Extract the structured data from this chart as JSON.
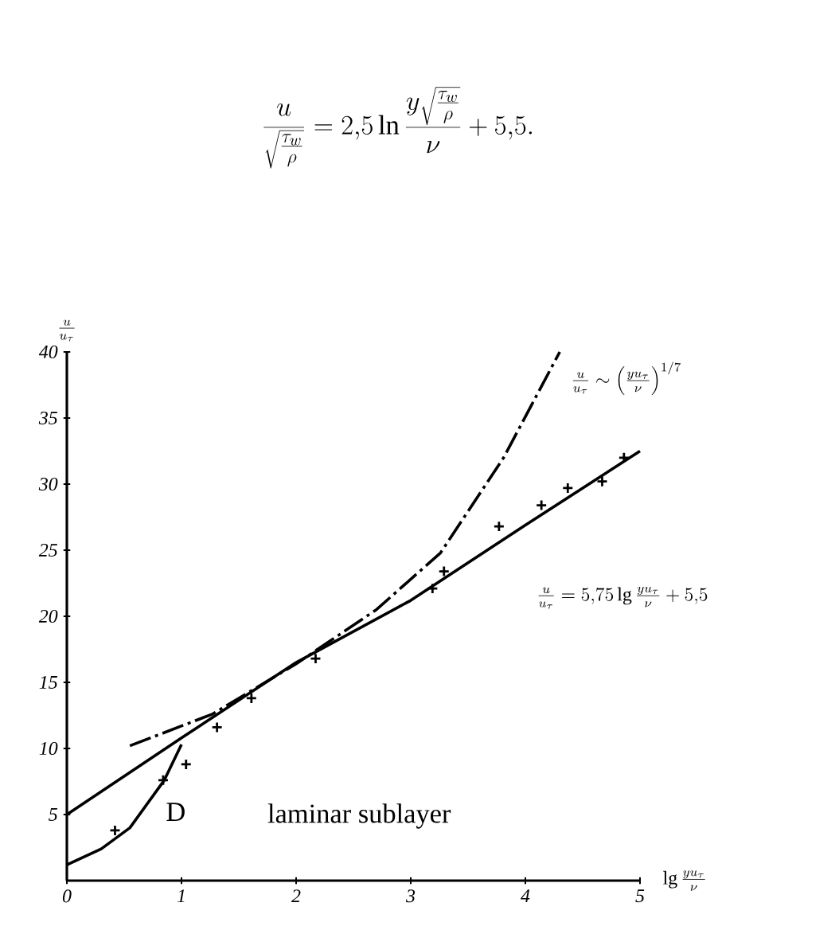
{
  "chart_data": {
    "type": "line",
    "title": "\\frac{u}{\\sqrt{\\frac{\\tau_w}{\\rho}}}=2{,}5\\ln\\frac{y\\sqrt{\\frac{\\tau_w}{\\rho}}}{\\nu}+5{,}5.",
    "xlabel": "\\lg\\frac{yu_\\tau}{\\nu}",
    "ylabel": "\\frac{u}{u_\\tau}",
    "xlim": [
      0,
      5
    ],
    "ylim": [
      0,
      40
    ],
    "xticks": [
      0,
      1,
      2,
      3,
      4,
      5
    ],
    "yticks": [
      5,
      10,
      15,
      20,
      25,
      30,
      35,
      40
    ],
    "grid": false,
    "series": [
      {
        "color": "#000000",
        "line_style": "solid",
        "x": [
          0,
          1,
          2,
          3,
          4,
          5
        ],
        "values": [
          5,
          10.8,
          16.5,
          21.2,
          26.9,
          32.5
        ]
      },
      {
        "color": "#000000",
        "line_style": "dashed",
        "x": [
          0.55,
          1.27,
          2,
          2.7,
          3.26,
          3.81,
          4.3
        ],
        "values": [
          10.2,
          12.6,
          16.4,
          20.5,
          24.8,
          32,
          40
        ]
      },
      {
        "color": "#000000",
        "line_style": "solid",
        "x": [
          0,
          0.3,
          0.55,
          0.85,
          1.0
        ],
        "values": [
          1.2,
          2.4,
          4,
          7.6,
          10.3
        ]
      },
      {
        "type": "scatter",
        "color": "#000000",
        "marker": "cross",
        "x": [
          0.42,
          0.84,
          1.04,
          1.31,
          1.61,
          2.17,
          3.19,
          3.29,
          3.77,
          4.14,
          4.37,
          4.67,
          4.86
        ],
        "values": [
          3.8,
          7.6,
          8.8,
          11.6,
          13.8,
          16.8,
          22.1,
          23.4,
          26.8,
          28.4,
          29.7,
          30.2,
          32.0
        ]
      }
    ],
    "annotations": [
      "\\frac{u}{u_\\tau}\\sim\\left(\\frac{yu_\\tau}{\\nu}\\right)^{1/7}",
      "\\frac{u}{u_\\tau}=5{,}75\\lg\\frac{yu_\\tau}{\\nu}+5{,}5",
      "\\mathrm{D}",
      "\\textrm{laminar sublayer}"
    ]
  }
}
